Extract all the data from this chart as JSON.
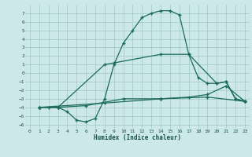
{
  "xlabel": "Humidex (Indice chaleur)",
  "bg_color": "#cce8e8",
  "grid_color": "#a8cccc",
  "line_color": "#1a6b5a",
  "xlim": [
    -0.5,
    23.5
  ],
  "ylim": [
    -6.5,
    8.0
  ],
  "xticks": [
    0,
    1,
    2,
    3,
    4,
    5,
    6,
    7,
    8,
    9,
    10,
    11,
    12,
    13,
    14,
    15,
    16,
    17,
    18,
    19,
    20,
    21,
    22,
    23
  ],
  "yticks": [
    -6,
    -5,
    -4,
    -3,
    -2,
    -1,
    0,
    1,
    2,
    3,
    4,
    5,
    6,
    7
  ],
  "line1_x": [
    1,
    2,
    3,
    4,
    5,
    6,
    7,
    8,
    9,
    10,
    11,
    12,
    13,
    14,
    15,
    16,
    17,
    18,
    19,
    20,
    21,
    22,
    23
  ],
  "line1_y": [
    -4,
    -4,
    -4,
    -4.5,
    -5.5,
    -5.7,
    -5.3,
    -3.0,
    1.0,
    3.5,
    5.0,
    6.5,
    7.0,
    7.3,
    7.3,
    6.8,
    2.2,
    -0.5,
    -1.2,
    -1.2,
    -1.0,
    -3.0,
    -3.3
  ],
  "line2_x": [
    1,
    3,
    8,
    9,
    14,
    17,
    20,
    21,
    22,
    23
  ],
  "line2_y": [
    -4,
    -4,
    1.0,
    1.2,
    2.2,
    2.2,
    -1.2,
    -1.0,
    -3.0,
    -3.3
  ],
  "line3_x": [
    1,
    3,
    6,
    10,
    14,
    17,
    19,
    21,
    23
  ],
  "line3_y": [
    -4,
    -4,
    -3.8,
    -3.0,
    -3.0,
    -2.8,
    -2.5,
    -1.5,
    -3.3
  ],
  "line4_x": [
    1,
    8,
    14,
    19,
    23
  ],
  "line4_y": [
    -4,
    -3.5,
    -3.0,
    -2.8,
    -3.3
  ]
}
